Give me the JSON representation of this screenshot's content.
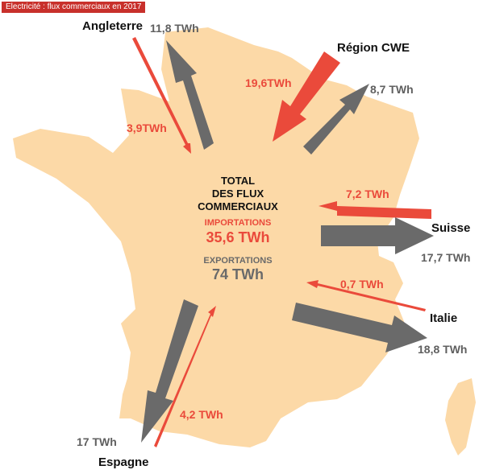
{
  "header": {
    "tag": "Electricité : flux commerciaux en 2017"
  },
  "colors": {
    "map_fill": "#fcd9a7",
    "import": "#ea4a3b",
    "export": "#6a6a6a",
    "tag_bg": "#c8302b"
  },
  "countries": {
    "angleterre": "Angleterre",
    "region_cwe": "Région CWE",
    "suisse": "Suisse",
    "italie": "Italie",
    "espagne": "Espagne"
  },
  "flows": {
    "angleterre_export": "11,8 TWh",
    "angleterre_import": "3,9TWh",
    "cwe_import": "19,6TWh",
    "cwe_export": "8,7 TWh",
    "suisse_import": "7,2 TWh",
    "suisse_export": "17,7 TWh",
    "italie_import": "0,7 TWh",
    "italie_export": "18,8 TWh",
    "espagne_export": "17 TWh",
    "espagne_import": "4,2 TWh"
  },
  "summary": {
    "line1": "TOTAL",
    "line2": "DES FLUX",
    "line3": "COMMERCIAUX",
    "imports_label": "IMPORTATIONS",
    "imports_value": "35,6 TWh",
    "exports_label": "EXPORTATIONS",
    "exports_value": "74 TWh"
  }
}
